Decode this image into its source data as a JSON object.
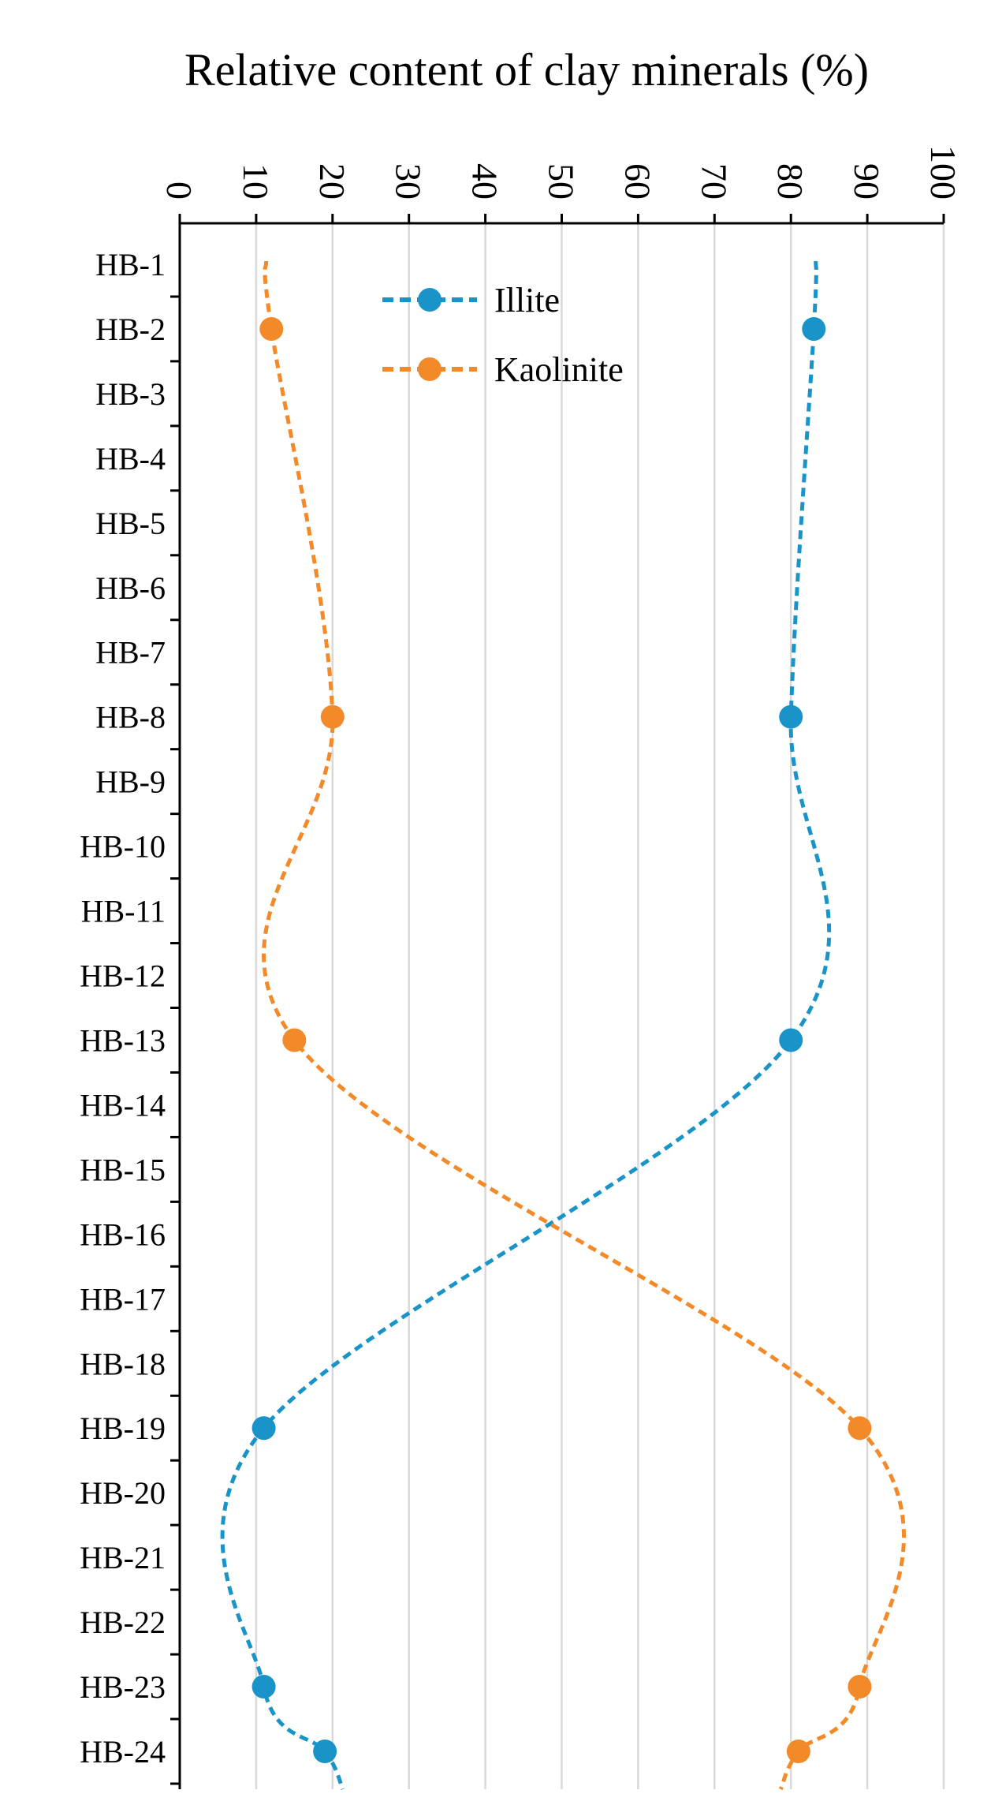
{
  "chart_data": {
    "type": "line",
    "title": "Relative content of clay minerals (%)",
    "xlabel": "Relative content of clay minerals (%)",
    "ylabel": "",
    "xlim": [
      0,
      100
    ],
    "x_ticks": [
      "0",
      "10",
      "20",
      "30",
      "40",
      "50",
      "60",
      "70",
      "80",
      "90",
      "100"
    ],
    "grid": true,
    "legend_position": "top-center",
    "categories": [
      "HB-1",
      "HB-2",
      "HB-3",
      "HB-4",
      "HB-5",
      "HB-6",
      "HB-7",
      "HB-8",
      "HB-9",
      "HB-10",
      "HB-11",
      "HB-12",
      "HB-13",
      "HB-14",
      "HB-15",
      "HB-16",
      "HB-17",
      "HB-18",
      "HB-19",
      "HB-20",
      "HB-21",
      "HB-22",
      "HB-23",
      "HB-24"
    ],
    "series": [
      {
        "name": "Illite",
        "color": "#1a94c8",
        "points": [
          {
            "sample": "HB-2",
            "value": 83
          },
          {
            "sample": "HB-8",
            "value": 80
          },
          {
            "sample": "HB-13",
            "value": 80
          },
          {
            "sample": "HB-19",
            "value": 11
          },
          {
            "sample": "HB-23",
            "value": 11
          },
          {
            "sample": "HB-24",
            "value": 19
          }
        ]
      },
      {
        "name": "Kaolinite",
        "color": "#f28a2a",
        "points": [
          {
            "sample": "HB-2",
            "value": 12
          },
          {
            "sample": "HB-8",
            "value": 20
          },
          {
            "sample": "HB-13",
            "value": 15
          },
          {
            "sample": "HB-19",
            "value": 89
          },
          {
            "sample": "HB-23",
            "value": 89
          },
          {
            "sample": "HB-24",
            "value": 81
          }
        ]
      }
    ]
  }
}
